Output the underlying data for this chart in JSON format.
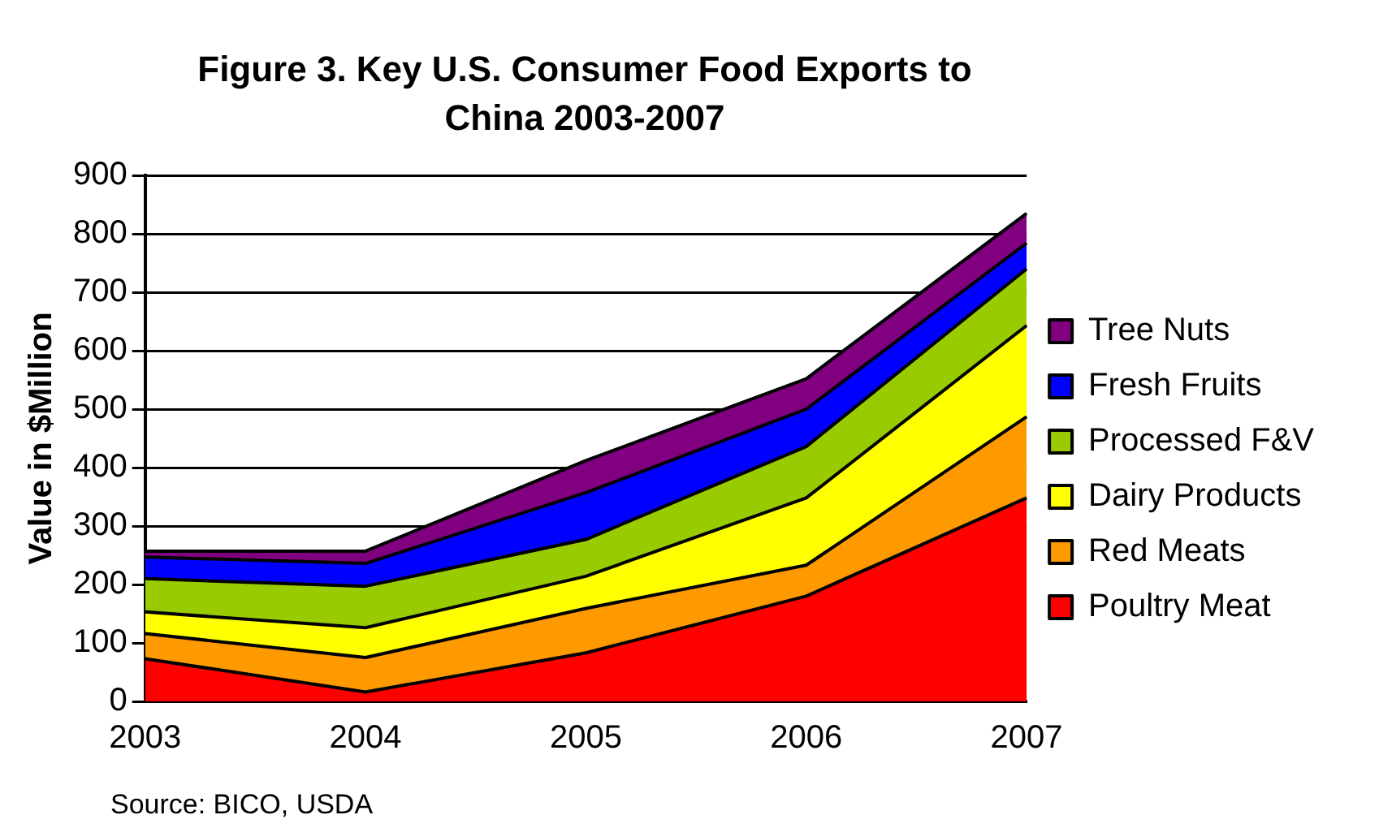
{
  "chart_data": {
    "type": "area",
    "title": "Figure 3. Key U.S. Consumer Food Exports to China 2003-2007",
    "ylabel": "Value in $Million",
    "categories": [
      "2003",
      "2004",
      "2005",
      "2006",
      "2007"
    ],
    "series": [
      {
        "name": "Poultry Meat",
        "color": "#ff0000",
        "values": [
          73,
          16,
          83,
          180,
          348
        ]
      },
      {
        "name": "Red Meats",
        "color": "#ff9900",
        "values": [
          43,
          59,
          76,
          53,
          139
        ]
      },
      {
        "name": "Dairy Products",
        "color": "#ffff00",
        "values": [
          37,
          51,
          55,
          115,
          156
        ]
      },
      {
        "name": "Processed F&V",
        "color": "#99cc00",
        "values": [
          57,
          71,
          63,
          88,
          97
        ]
      },
      {
        "name": "Fresh Fruits",
        "color": "#0000ff",
        "values": [
          37,
          39,
          80,
          64,
          44
        ]
      },
      {
        "name": "Tree Nuts",
        "color": "#800080",
        "values": [
          10,
          21,
          55,
          52,
          51
        ]
      }
    ],
    "stacked": true,
    "ylim": [
      0,
      900
    ],
    "yticks": [
      0,
      100,
      200,
      300,
      400,
      500,
      600,
      700,
      800,
      900
    ],
    "grid": "y",
    "legend": "right",
    "annotations": [
      "Source: BICO, USDA"
    ]
  }
}
